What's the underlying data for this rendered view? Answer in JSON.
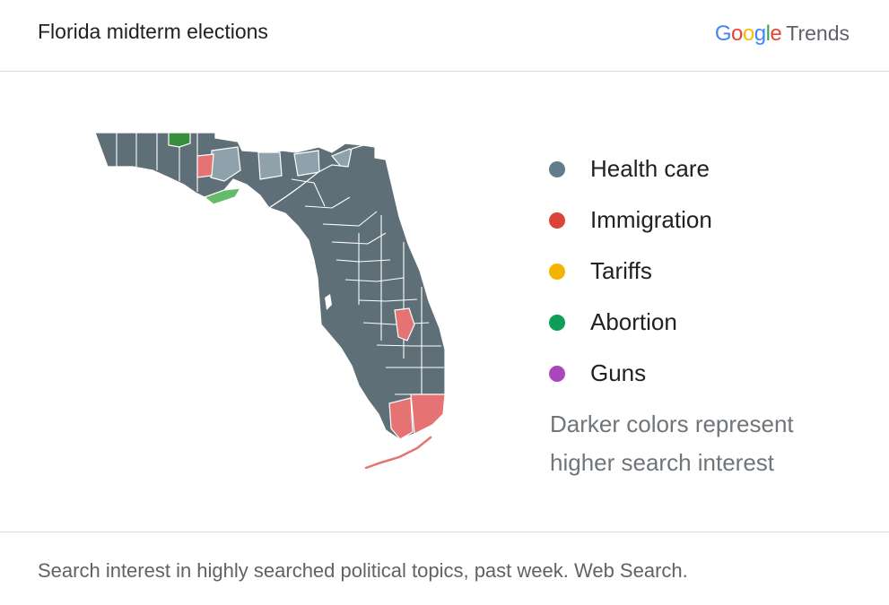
{
  "header": {
    "title": "Florida midterm elections",
    "brand_google": "Google",
    "brand_trends": "Trends"
  },
  "legend": {
    "items": [
      {
        "label": "Health care",
        "color": "#607d8b"
      },
      {
        "label": "Immigration",
        "color": "#db4437"
      },
      {
        "label": "Tariffs",
        "color": "#f4b400"
      },
      {
        "label": "Abortion",
        "color": "#0f9d58"
      },
      {
        "label": "Guns",
        "color": "#ab47bc"
      }
    ],
    "note_line1": "Darker colors represent",
    "note_line2": "higher search interest"
  },
  "map": {
    "region": "Florida",
    "base_color": "#5f6f78",
    "light_color": "#8fa2ab",
    "immigration_color": "#e57373",
    "abortion_color": "#43a047"
  },
  "footer": {
    "caption": "Search interest in highly searched political topics, past week. Web Search."
  }
}
